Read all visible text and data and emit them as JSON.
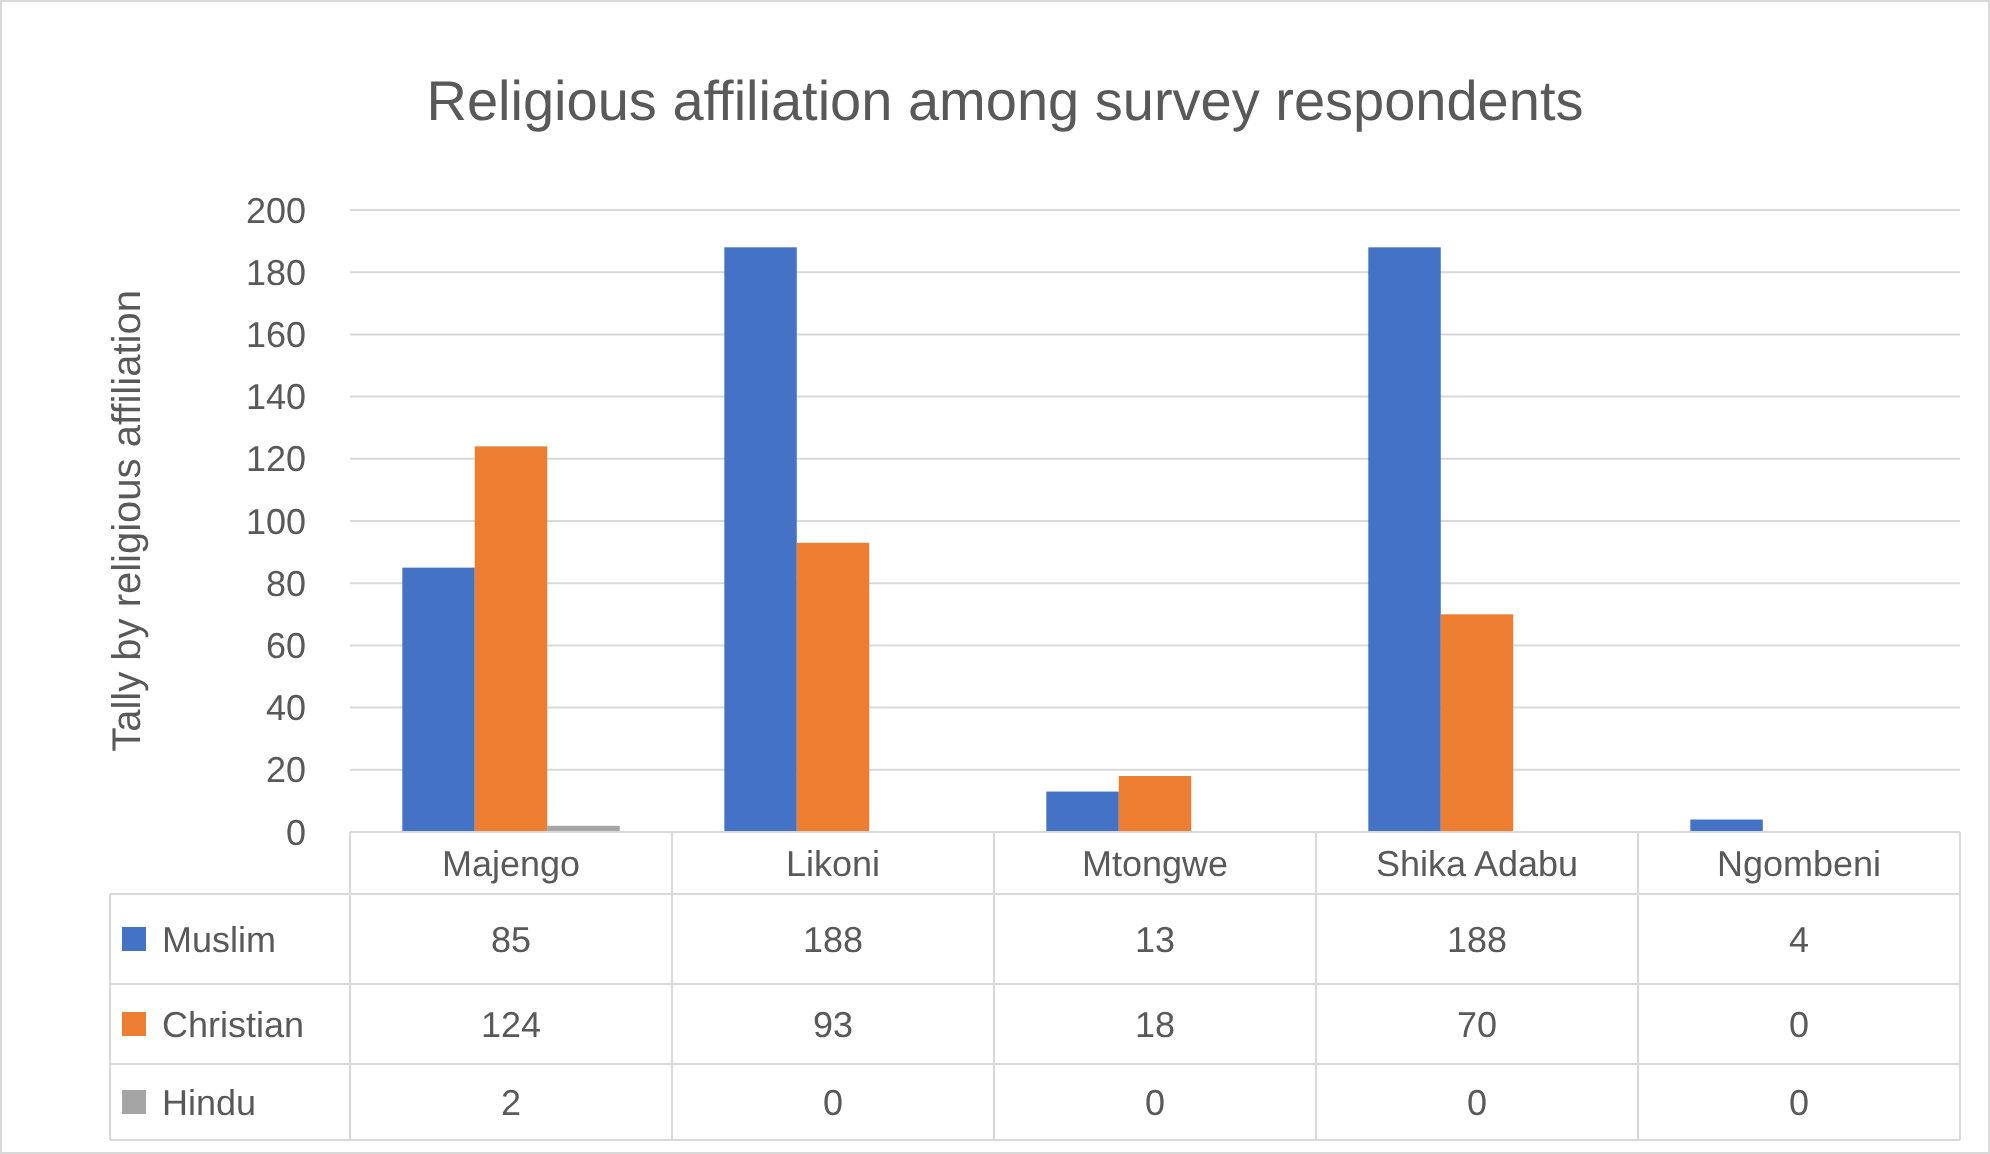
{
  "chart_data": {
    "type": "bar",
    "title": "Religious affiliation among survey respondents",
    "ylabel": "Tally by religious affiliation",
    "categories": [
      "Majengo",
      "Likoni",
      "Mtongwe",
      "Shika Adabu",
      "Ngombeni"
    ],
    "series": [
      {
        "name": "Muslim",
        "color": "#4472c4",
        "values": [
          85,
          188,
          13,
          188,
          4
        ]
      },
      {
        "name": "Christian",
        "color": "#ed7d31",
        "values": [
          124,
          93,
          18,
          70,
          0
        ]
      },
      {
        "name": "Hindu",
        "color": "#a5a5a5",
        "values": [
          2,
          0,
          0,
          0,
          0
        ]
      }
    ],
    "ylim": [
      0,
      200
    ],
    "yticks": [
      0,
      20,
      40,
      60,
      80,
      100,
      120,
      140,
      160,
      180,
      200
    ],
    "grid": "y",
    "legend": "bottom left",
    "data_labels": true
  }
}
